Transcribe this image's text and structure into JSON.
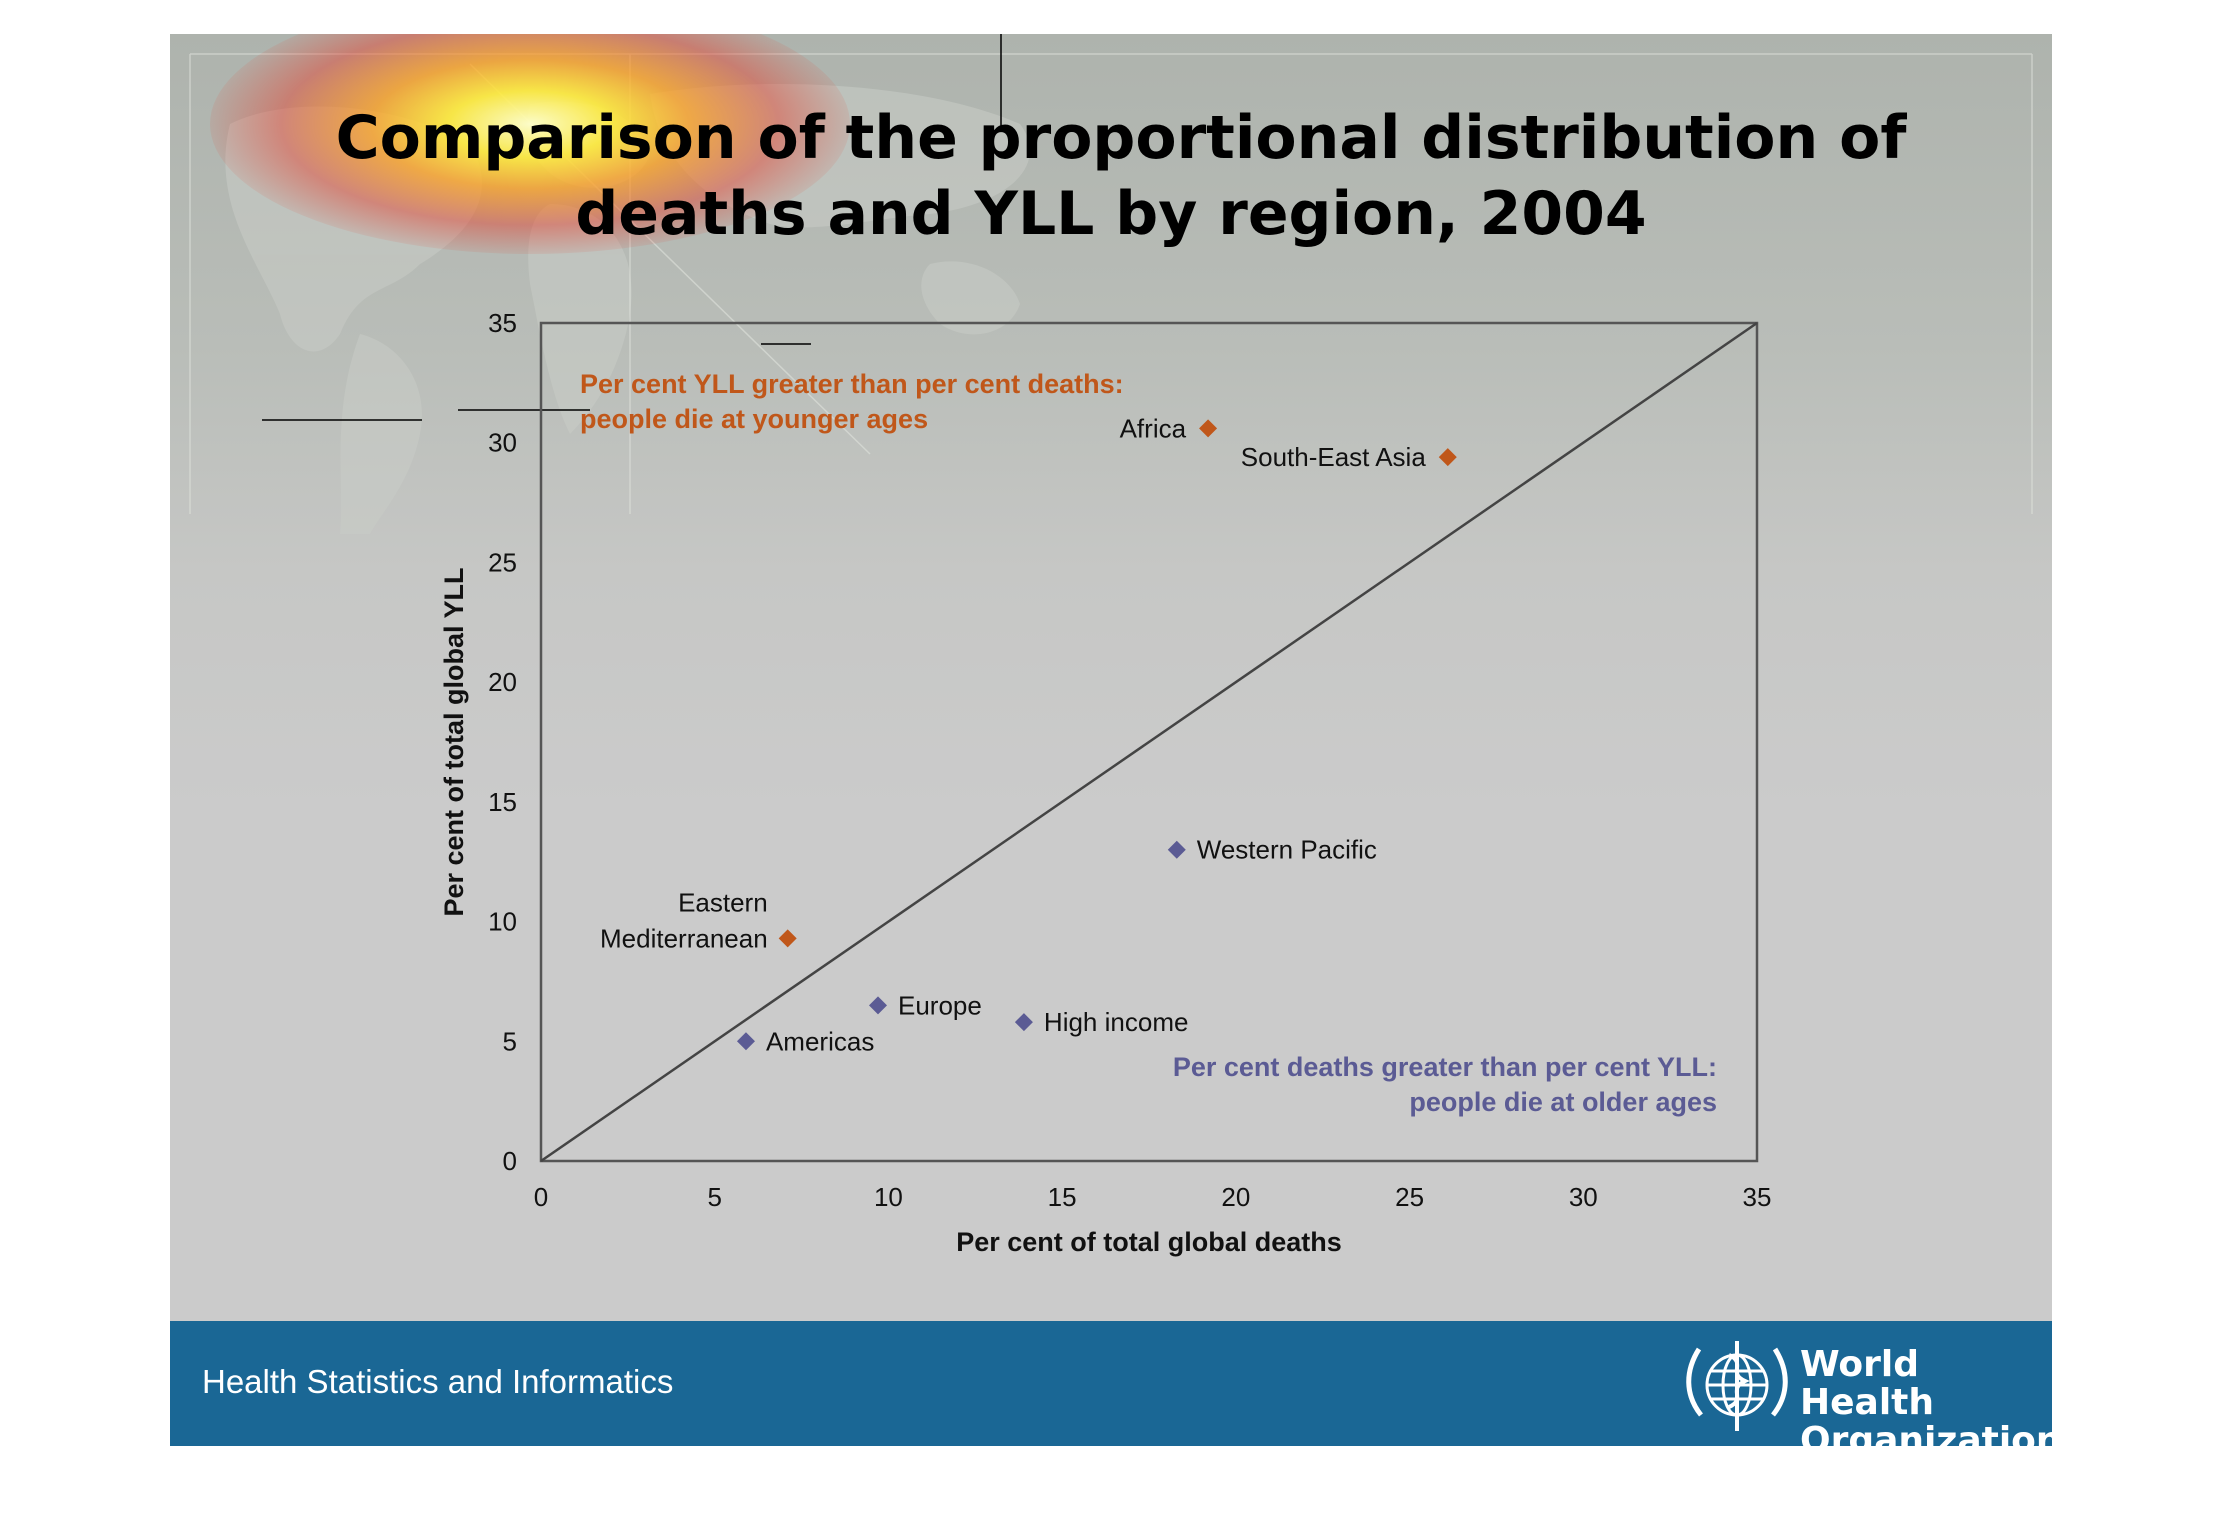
{
  "slide": {
    "title_line1": "Comparison of the proportional distribution of",
    "title_line2": "deaths and YLL by region, 2004",
    "footer_text": "Health Statistics and Informatics",
    "org_name_line1": "World Health",
    "org_name_line2": "Organization",
    "footer_color": "#1a6795"
  },
  "chart_data": {
    "type": "scatter",
    "title": "",
    "xlabel": "Per cent of total global deaths",
    "ylabel": "Per cent of total global YLL",
    "xlim": [
      0,
      35
    ],
    "ylim": [
      0,
      35
    ],
    "xticks": [
      0,
      5,
      10,
      15,
      20,
      25,
      30,
      35
    ],
    "yticks": [
      0,
      5,
      10,
      15,
      20,
      25,
      30,
      35
    ],
    "grid": false,
    "reference_line": {
      "from": [
        0,
        0
      ],
      "to": [
        35,
        35
      ]
    },
    "colors": {
      "older": "#5b5b94",
      "younger": "#c0571a"
    },
    "annotations": {
      "upper_line1": "Per cent YLL greater than per cent deaths:",
      "upper_line2": "people die at younger ages",
      "lower_line1": "Per cent deaths greater than per cent YLL:",
      "lower_line2": "people die at older ages"
    },
    "points": [
      {
        "label": "Africa",
        "x": 19.2,
        "y": 30.6,
        "group": "younger"
      },
      {
        "label": "South-East Asia",
        "x": 26.1,
        "y": 29.4,
        "group": "younger"
      },
      {
        "label": "Eastern Mediterranean",
        "label_lines": [
          "Eastern",
          "Mediterranean"
        ],
        "x": 7.1,
        "y": 9.3,
        "group": "younger"
      },
      {
        "label": "Western Pacific",
        "x": 18.3,
        "y": 13.0,
        "group": "older"
      },
      {
        "label": "Europe",
        "x": 9.7,
        "y": 6.5,
        "group": "older"
      },
      {
        "label": "High income",
        "x": 13.9,
        "y": 5.8,
        "group": "older"
      },
      {
        "label": "Americas",
        "x": 5.9,
        "y": 5.0,
        "group": "older"
      }
    ]
  }
}
